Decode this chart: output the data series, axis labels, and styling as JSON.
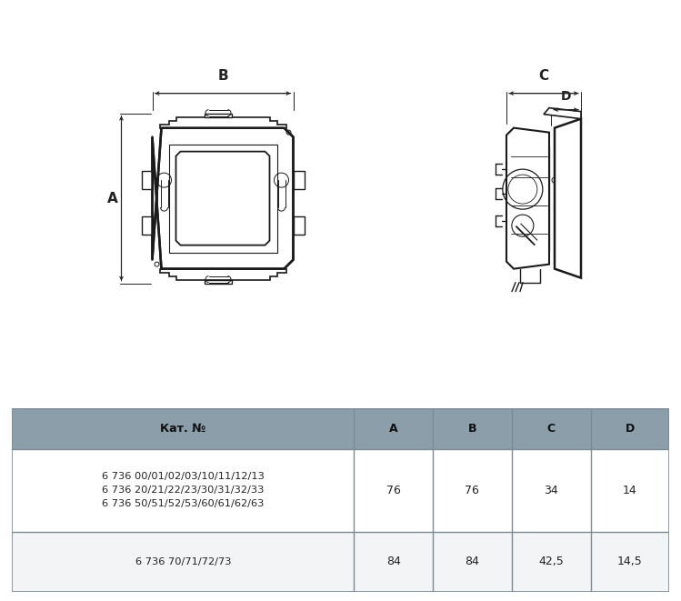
{
  "bg_color": "#ffffff",
  "table_header_bg": "#8b9eaa",
  "table_border_color": "#7a8a96",
  "table_text_color": "#222222",
  "header_labels": [
    "Кат. №",
    "A",
    "B",
    "C",
    "D"
  ],
  "row1_cat": "6 736 00/01/02/03/10/11/12/13\n6 736 20/21/22/23/30/31/32/33\n6 736 50/51/52/53/60/61/62/63",
  "row1_vals": [
    "76",
    "76",
    "34",
    "14"
  ],
  "row2_cat": "6 736 70/71/72/73",
  "row2_vals": [
    "84",
    "84",
    "42,5",
    "14,5"
  ],
  "lc": "#1a1a1a",
  "dim_color": "#222222"
}
